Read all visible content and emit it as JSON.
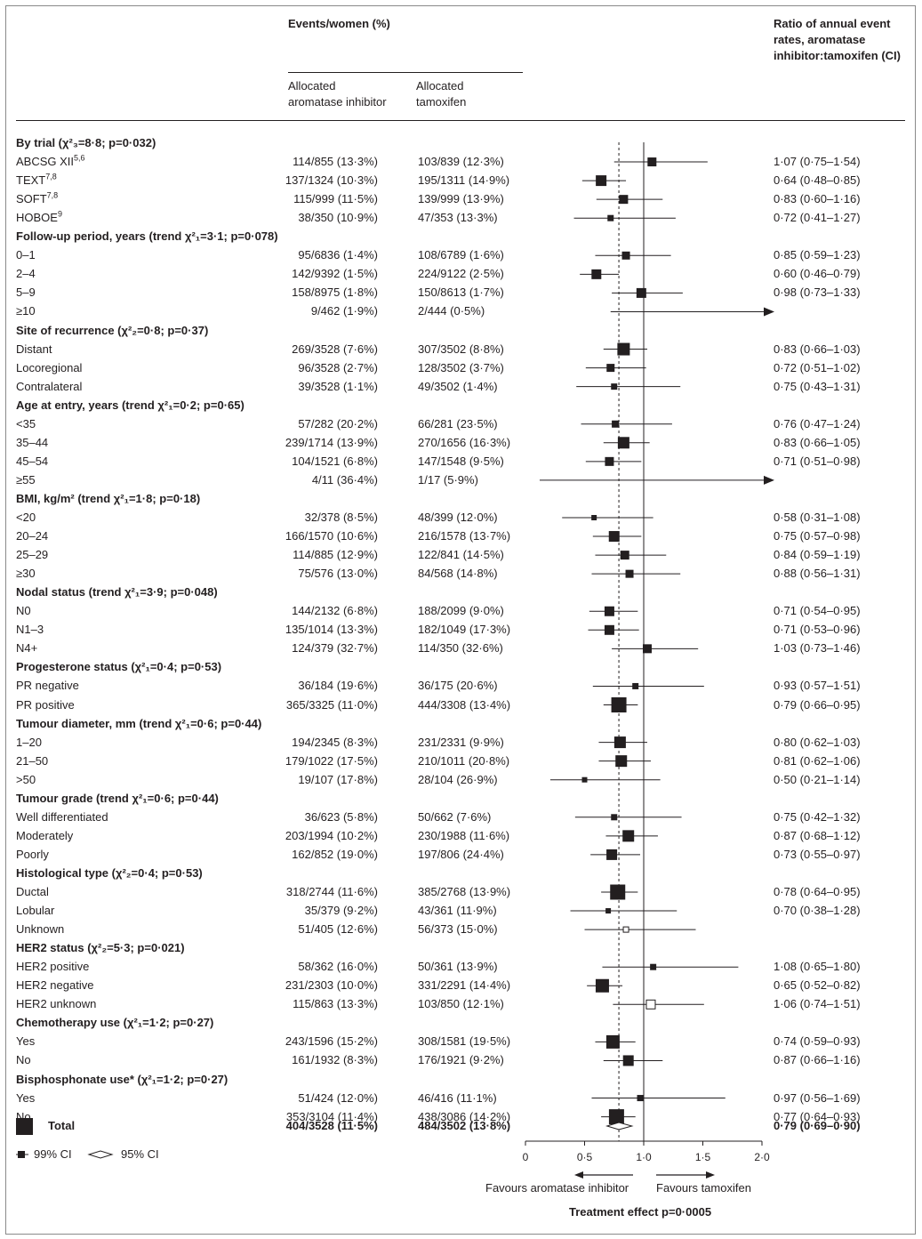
{
  "header": {
    "events_women": "Events/women (%)",
    "allocated_ai": [
      "Allocated",
      "aromatase inhibitor"
    ],
    "allocated_tam": [
      "Allocated",
      "tamoxifen"
    ],
    "ratio_title": [
      "Ratio of annual event",
      "rates, aromatase",
      "inhibitor:tamoxifen (CI)"
    ]
  },
  "rows": [
    {
      "type": "group",
      "label": "By trial (χ²₃=8·8; p=0·032)"
    },
    {
      "type": "data",
      "label": "ABCSG XII",
      "sup": "5,6",
      "ai": "114/855 (13·3%)",
      "tam": "103/839 (12·3%)",
      "ratio": "1·07 (0·75–1·54)",
      "est": 1.07,
      "lo": 0.75,
      "hi": 1.54,
      "w": 9
    },
    {
      "type": "data",
      "label": "TEXT",
      "sup": "7,8",
      "ai": "137/1324 (10·3%)",
      "tam": "195/1311 (14·9%)",
      "ratio": "0·64 (0·48–0·85)",
      "est": 0.64,
      "lo": 0.48,
      "hi": 0.85,
      "w": 11
    },
    {
      "type": "data",
      "label": "SOFT",
      "sup": "7,8",
      "ai": "115/999 (11·5%)",
      "tam": "139/999 (13·9%)",
      "ratio": "0·83 (0·60–1·16)",
      "est": 0.83,
      "lo": 0.6,
      "hi": 1.16,
      "w": 9
    },
    {
      "type": "data",
      "label": "HOBOE",
      "sup": "9",
      "ai": "38/350 (10·9%)",
      "tam": "47/353 (13·3%)",
      "ratio": "0·72 (0·41–1·27)",
      "est": 0.72,
      "lo": 0.41,
      "hi": 1.27,
      "w": 6
    },
    {
      "type": "group",
      "label": "Follow-up period, years (trend χ²₁=3·1; p=0·078)"
    },
    {
      "type": "data",
      "label": "0–1",
      "ai": "95/6836 (1·4%)",
      "tam": "108/6789 (1·6%)",
      "ratio": "0·85 (0·59–1·23)",
      "est": 0.85,
      "lo": 0.59,
      "hi": 1.23,
      "w": 8
    },
    {
      "type": "data",
      "label": "2–4",
      "ai": "142/9392 (1·5%)",
      "tam": "224/9122 (2·5%)",
      "ratio": "0·60 (0·46–0·79)",
      "est": 0.6,
      "lo": 0.46,
      "hi": 0.79,
      "w": 10
    },
    {
      "type": "data",
      "label": "5–9",
      "ai": "158/8975 (1·8%)",
      "tam": "150/8613 (1·7%)",
      "ratio": "0·98 (0·73–1·33)",
      "est": 0.98,
      "lo": 0.73,
      "hi": 1.33,
      "w": 10
    },
    {
      "type": "data",
      "label": "≥10",
      "ai": "9/462 (1·9%)",
      "tam": "2/444 (0·5%)",
      "ratio": "",
      "est": null,
      "lo": 0.72,
      "hi": 2.0,
      "w": 0,
      "arrow": "right"
    },
    {
      "type": "group",
      "label": "Site of recurrence (χ²₂=0·8; p=0·37)"
    },
    {
      "type": "data",
      "label": "Distant",
      "ai": "269/3528 (7·6%)",
      "tam": "307/3502 (8·8%)",
      "ratio": "0·83 (0·66–1·03)",
      "est": 0.83,
      "lo": 0.66,
      "hi": 1.03,
      "w": 13
    },
    {
      "type": "data",
      "label": "Locoregional",
      "ai": "96/3528 (2·7%)",
      "tam": "128/3502 (3·7%)",
      "ratio": "0·72 (0·51–1·02)",
      "est": 0.72,
      "lo": 0.51,
      "hi": 1.02,
      "w": 8
    },
    {
      "type": "data",
      "label": "Contralateral",
      "ai": "39/3528 (1·1%)",
      "tam": "49/3502 (1·4%)",
      "ratio": "0·75 (0·43–1·31)",
      "est": 0.75,
      "lo": 0.43,
      "hi": 1.31,
      "w": 6
    },
    {
      "type": "group",
      "label": "Age at entry, years (trend χ²₁=0·2; p=0·65)"
    },
    {
      "type": "data",
      "label": "<35",
      "ai": "57/282 (20·2%)",
      "tam": "66/281 (23·5%)",
      "ratio": "0·76 (0·47–1·24)",
      "est": 0.76,
      "lo": 0.47,
      "hi": 1.24,
      "w": 7
    },
    {
      "type": "data",
      "label": "35–44",
      "ai": "239/1714 (13·9%)",
      "tam": "270/1656 (16·3%)",
      "ratio": "0·83 (0·66–1·05)",
      "est": 0.83,
      "lo": 0.66,
      "hi": 1.05,
      "w": 12
    },
    {
      "type": "data",
      "label": "45–54",
      "ai": "104/1521 (6·8%)",
      "tam": "147/1548 (9·5%)",
      "ratio": "0·71 (0·51–0·98)",
      "est": 0.71,
      "lo": 0.51,
      "hi": 0.98,
      "w": 9
    },
    {
      "type": "data",
      "label": "≥55",
      "ai": "4/11 (36·4%)",
      "tam": "1/17 (5·9%)",
      "ratio": "",
      "est": null,
      "lo": 0.12,
      "hi": 2.0,
      "w": 0,
      "arrow": "right"
    },
    {
      "type": "group",
      "label": "BMI, kg/m² (trend χ²₁=1·8; p=0·18)"
    },
    {
      "type": "data",
      "label": "<20",
      "ai": "32/378 (8·5%)",
      "tam": "48/399 (12·0%)",
      "ratio": "0·58 (0·31–1·08)",
      "est": 0.58,
      "lo": 0.31,
      "hi": 1.08,
      "w": 5
    },
    {
      "type": "data",
      "label": "20–24",
      "ai": "166/1570 (10·6%)",
      "tam": "216/1578 (13·7%)",
      "ratio": "0·75 (0·57–0·98)",
      "est": 0.75,
      "lo": 0.57,
      "hi": 0.98,
      "w": 11
    },
    {
      "type": "data",
      "label": "25–29",
      "ai": "114/885 (12·9%)",
      "tam": "122/841 (14·5%)",
      "ratio": "0·84 (0·59–1·19)",
      "est": 0.84,
      "lo": 0.59,
      "hi": 1.19,
      "w": 9
    },
    {
      "type": "data",
      "label": "≥30",
      "ai": "75/576 (13·0%)",
      "tam": "84/568 (14·8%)",
      "ratio": "0·88 (0·56–1·31)",
      "est": 0.88,
      "lo": 0.56,
      "hi": 1.31,
      "w": 8
    },
    {
      "type": "group",
      "label": "Nodal status (trend χ²₁=3·9; p=0·048)"
    },
    {
      "type": "data",
      "label": "N0",
      "ai": "144/2132 (6·8%)",
      "tam": "188/2099 (9·0%)",
      "ratio": "0·71 (0·54–0·95)",
      "est": 0.71,
      "lo": 0.54,
      "hi": 0.95,
      "w": 10
    },
    {
      "type": "data",
      "label": "N1–3",
      "ai": "135/1014 (13·3%)",
      "tam": "182/1049 (17·3%)",
      "ratio": "0·71 (0·53–0·96)",
      "est": 0.71,
      "lo": 0.53,
      "hi": 0.96,
      "w": 10
    },
    {
      "type": "data",
      "label": "N4+",
      "ai": "124/379 (32·7%)",
      "tam": "114/350 (32·6%)",
      "ratio": "1·03 (0·73–1·46)",
      "est": 1.03,
      "lo": 0.73,
      "hi": 1.46,
      "w": 9
    },
    {
      "type": "group",
      "label": "Progesterone status (χ²₁=0·4; p=0·53)"
    },
    {
      "type": "data",
      "label": "PR negative",
      "ai": "36/184 (19·6%)",
      "tam": "36/175 (20·6%)",
      "ratio": "0·93 (0·57–1·51)",
      "est": 0.93,
      "lo": 0.57,
      "hi": 1.51,
      "w": 6
    },
    {
      "type": "data",
      "label": "PR positive",
      "ai": "365/3325 (11·0%)",
      "tam": "444/3308 (13·4%)",
      "ratio": "0·79 (0·66–0·95)",
      "est": 0.79,
      "lo": 0.66,
      "hi": 0.95,
      "w": 16
    },
    {
      "type": "group",
      "label": "Tumour diameter, mm (trend χ²₁=0·6; p=0·44)"
    },
    {
      "type": "data",
      "label": "1–20",
      "ai": "194/2345 (8·3%)",
      "tam": "231/2331 (9·9%)",
      "ratio": "0·80 (0·62–1·03)",
      "est": 0.8,
      "lo": 0.62,
      "hi": 1.03,
      "w": 12
    },
    {
      "type": "data",
      "label": "21–50",
      "ai": "179/1022 (17·5%)",
      "tam": "210/1011 (20·8%)",
      "ratio": "0·81 (0·62–1·06)",
      "est": 0.81,
      "lo": 0.62,
      "hi": 1.06,
      "w": 12
    },
    {
      "type": "data",
      "label": ">50",
      "ai": "19/107 (17·8%)",
      "tam": "28/104 (26·9%)",
      "ratio": "0·50 (0·21–1·14)",
      "est": 0.5,
      "lo": 0.21,
      "hi": 1.14,
      "w": 5
    },
    {
      "type": "group",
      "label": "Tumour grade (trend χ²₁=0·6; p=0·44)"
    },
    {
      "type": "data",
      "label": "Well differentiated",
      "ai": "36/623 (5·8%)",
      "tam": "50/662 (7·6%)",
      "ratio": "0·75 (0·42–1·32)",
      "est": 0.75,
      "lo": 0.42,
      "hi": 1.32,
      "w": 6
    },
    {
      "type": "data",
      "label": "Moderately",
      "ai": "203/1994 (10·2%)",
      "tam": "230/1988 (11·6%)",
      "ratio": "0·87 (0·68–1·12)",
      "est": 0.87,
      "lo": 0.68,
      "hi": 1.12,
      "w": 12
    },
    {
      "type": "data",
      "label": "Poorly",
      "ai": "162/852 (19·0%)",
      "tam": "197/806 (24·4%)",
      "ratio": "0·73 (0·55–0·97)",
      "est": 0.73,
      "lo": 0.55,
      "hi": 0.97,
      "w": 11
    },
    {
      "type": "group",
      "label": "Histological type (χ²₂=0·4; p=0·53)"
    },
    {
      "type": "data",
      "label": "Ductal",
      "ai": "318/2744 (11·6%)",
      "tam": "385/2768 (13·9%)",
      "ratio": "0·78 (0·64–0·95)",
      "est": 0.78,
      "lo": 0.64,
      "hi": 0.95,
      "w": 16
    },
    {
      "type": "data",
      "label": "Lobular",
      "ai": "35/379 (9·2%)",
      "tam": "43/361 (11·9%)",
      "ratio": "0·70 (0·38–1·28)",
      "est": 0.7,
      "lo": 0.38,
      "hi": 1.28,
      "w": 5
    },
    {
      "type": "data",
      "label": "Unknown",
      "ai": "51/405 (12·6%)",
      "tam": "56/373 (15·0%)",
      "ratio": "",
      "est": 0.85,
      "lo": 0.5,
      "hi": 1.44,
      "w": 6,
      "open": true
    },
    {
      "type": "group",
      "label": "HER2 status (χ²₂=5·3; p=0·021)"
    },
    {
      "type": "data",
      "label": "HER2 positive",
      "ai": "58/362 (16·0%)",
      "tam": "50/361 (13·9%)",
      "ratio": "1·08 (0·65–1·80)",
      "est": 1.08,
      "lo": 0.65,
      "hi": 1.8,
      "w": 6
    },
    {
      "type": "data",
      "label": "HER2 negative",
      "ai": "231/2303 (10·0%)",
      "tam": "331/2291 (14·4%)",
      "ratio": "0·65 (0·52–0·82)",
      "est": 0.65,
      "lo": 0.52,
      "hi": 0.82,
      "w": 14
    },
    {
      "type": "data",
      "label": "HER2 unknown",
      "ai": "115/863 (13·3%)",
      "tam": "103/850 (12·1%)",
      "ratio": "1·06 (0·74–1·51)",
      "est": 1.06,
      "lo": 0.74,
      "hi": 1.51,
      "w": 10,
      "open": true
    },
    {
      "type": "group",
      "label": "Chemotherapy use (χ²₁=1·2; p=0·27)"
    },
    {
      "type": "data",
      "label": "Yes",
      "ai": "243/1596 (15·2%)",
      "tam": "308/1581 (19·5%)",
      "ratio": "0·74 (0·59–0·93)",
      "est": 0.74,
      "lo": 0.59,
      "hi": 0.93,
      "w": 14
    },
    {
      "type": "data",
      "label": "No",
      "ai": "161/1932 (8·3%)",
      "tam": "176/1921 (9·2%)",
      "ratio": "0·87 (0·66–1·16)",
      "est": 0.87,
      "lo": 0.66,
      "hi": 1.16,
      "w": 11
    },
    {
      "type": "group",
      "label": "Bisphosphonate use* (χ²₁=1·2; p=0·27)"
    },
    {
      "type": "data",
      "label": "Yes",
      "ai": "51/424 (12·0%)",
      "tam": "46/416 (11·1%)",
      "ratio": "0·97 (0·56–1·69)",
      "est": 0.97,
      "lo": 0.56,
      "hi": 1.69,
      "w": 6
    },
    {
      "type": "data",
      "label": "No",
      "ai": "353/3104 (11·4%)",
      "tam": "438/3086 (14·2%)",
      "ratio": "0·77 (0·64–0·93)",
      "est": 0.77,
      "lo": 0.64,
      "hi": 0.93,
      "w": 16
    }
  ],
  "total": {
    "label": "Total",
    "ai": "404/3528 (11·5%)",
    "tam": "484/3502 (13·8%)",
    "ratio": "0·79 (0·69–0·90)",
    "est": 0.79,
    "lo": 0.69,
    "hi": 0.9
  },
  "legend": {
    "ci99": "99% CI",
    "ci95": "95% CI"
  },
  "axis": {
    "ticks": [
      0,
      0.5,
      1.0,
      1.5,
      2.0
    ],
    "tick_labels": [
      "0",
      "0·5",
      "1·0",
      "1·5",
      "2·0"
    ],
    "favours_left": "Favours aromatase inhibitor",
    "favours_right": "Favours  tamoxifen",
    "footer": "Treatment effect p=0·0005"
  },
  "chart_data": {
    "type": "forest",
    "reference_line": 1.0,
    "overall_line": 0.79,
    "xlim": [
      0,
      2.0
    ]
  }
}
